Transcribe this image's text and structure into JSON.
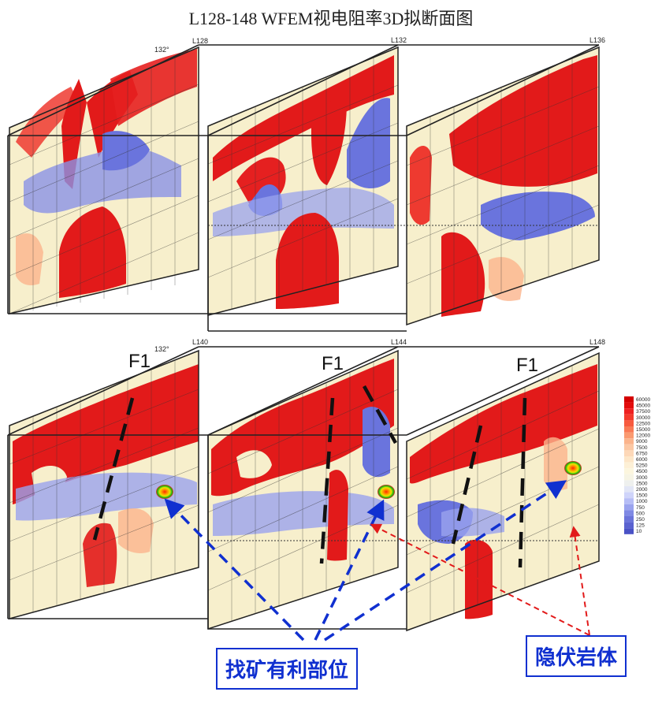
{
  "title": "L128-148 WFEM视电阻率3D拟断面图",
  "top_row": {
    "angle_label": "132°",
    "lines": [
      "L128",
      "L132",
      "L136"
    ]
  },
  "bottom_row": {
    "angle_label": "132°",
    "lines": [
      "L140",
      "L144",
      "L148"
    ],
    "fault_label": "F1"
  },
  "colorbar": {
    "ticks": [
      "60000",
      "45000",
      "37500",
      "30000",
      "22500",
      "15000",
      "12000",
      "9000",
      "7500",
      "6750",
      "6000",
      "5250",
      "4500",
      "3000",
      "2500",
      "2000",
      "1500",
      "1000",
      "750",
      "500",
      "250",
      "125",
      "10"
    ],
    "colors": [
      "#d40000",
      "#e30c0c",
      "#ee2020",
      "#f43a2c",
      "#f75a3e",
      "#f97a55",
      "#fa9a70",
      "#fbb48c",
      "#fcc8a4",
      "#fdd8b8",
      "#fde6c8",
      "#fdf0d6",
      "#fcf6de",
      "#f6f4e4",
      "#eef0ee",
      "#e2e6f6",
      "#cfd4fa",
      "#b6bdf6",
      "#9aa3ee",
      "#7f89e4",
      "#6b74da",
      "#5a62d0",
      "#4a52c6"
    ]
  },
  "callouts": {
    "favorable": "找矿有利部位",
    "hidden_rock": "隐伏岩体"
  },
  "colors": {
    "high": "#e21a1a",
    "low": "#6a74dd",
    "mid": "#f6edc6",
    "callout_blue": "#1030d0",
    "callout_red": "#e21a1a"
  }
}
